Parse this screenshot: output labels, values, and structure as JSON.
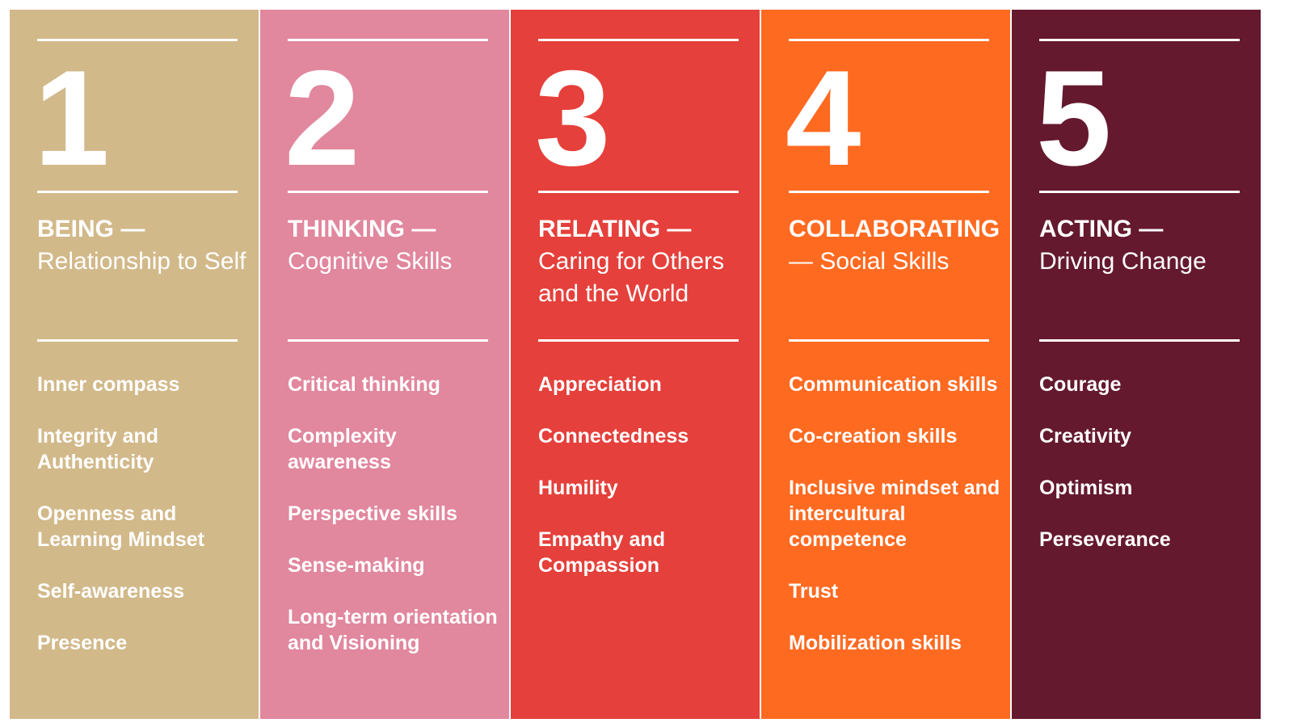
{
  "columns": [
    {
      "number": "1",
      "title": "BEING —",
      "subtitle": "Relationship to Self",
      "color": "#d2b98a",
      "skills": [
        "Inner compass",
        "Integrity and Authenticity",
        "Openness and Learning Mindset",
        "Self-awareness",
        "Presence"
      ]
    },
    {
      "number": "2",
      "title": "THINKING —",
      "subtitle": "Cognitive Skills",
      "color": "#e1879e",
      "skills": [
        "Critical thinking",
        "Complexity awareness",
        "Perspective skills",
        "Sense-making",
        "Long-term orientation and Visioning"
      ]
    },
    {
      "number": "3",
      "title": "RELATING —",
      "subtitle": "Caring for Others and the World",
      "color": "#e5403b",
      "skills": [
        "Appreciation",
        "Connectedness",
        "Humility",
        "Empathy and Compassion"
      ]
    },
    {
      "number": "4",
      "title": "COLLABORATING",
      "subtitle": "— Social Skills",
      "color": "#ff6a21",
      "skills": [
        "Communication skills",
        "Co-creation skills",
        "Inclusive mindset and intercultural competence",
        "Trust",
        "Mobilization skills"
      ]
    },
    {
      "number": "5",
      "title": "ACTING —",
      "subtitle": "Driving Change",
      "color": "#64192e",
      "skills": [
        "Courage",
        "Creativity",
        "Optimism",
        "Perseverance"
      ]
    }
  ]
}
